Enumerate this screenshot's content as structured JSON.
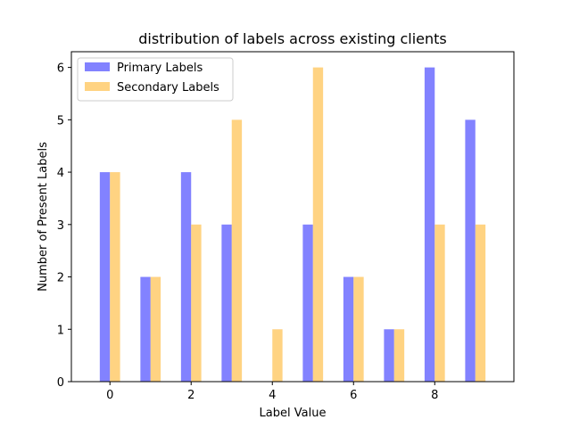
{
  "chart_data": {
    "type": "bar",
    "title": "distribution of labels across existing clients",
    "xlabel": "Label Value",
    "ylabel": "Number of Present Labels",
    "categories": [
      0,
      1,
      2,
      3,
      4,
      5,
      6,
      7,
      8,
      9
    ],
    "x_ticks": [
      "0",
      "2",
      "4",
      "6",
      "8"
    ],
    "y_ticks": [
      "0",
      "1",
      "2",
      "3",
      "4",
      "5",
      "6"
    ],
    "xlim": [
      -0.95,
      9.95
    ],
    "ylim": [
      0,
      6.3
    ],
    "grid": false,
    "legend_position": "top-left",
    "series": [
      {
        "name": "Primary Labels",
        "color": "#4d4dff",
        "values": [
          4,
          2,
          4,
          3,
          0,
          3,
          2,
          1,
          6,
          5
        ]
      },
      {
        "name": "Secondary Labels",
        "color": "#ffc04d",
        "values": [
          4,
          2,
          3,
          5,
          1,
          6,
          2,
          1,
          3,
          3
        ]
      }
    ]
  }
}
